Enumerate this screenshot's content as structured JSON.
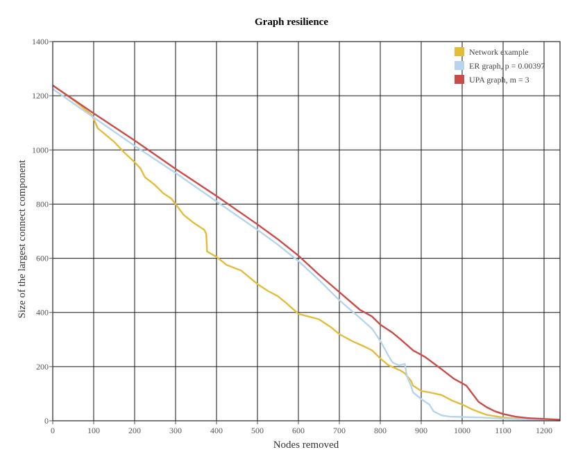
{
  "chart_data": {
    "type": "line",
    "title": "Graph resilience",
    "xlabel": "Nodes removed",
    "ylabel": "Size of the largest connect component",
    "xlim": [
      0,
      1239
    ],
    "ylim": [
      0,
      1400
    ],
    "x_ticks": [
      "0",
      "100",
      "200",
      "300",
      "400",
      "500",
      "600",
      "700",
      "800",
      "900",
      "1000",
      "1100",
      "1200"
    ],
    "y_ticks": [
      "0",
      "200",
      "400",
      "600",
      "800",
      "1000",
      "1200",
      "1400"
    ],
    "grid": true,
    "legend_position": "top-right",
    "series": [
      {
        "name": "Network example",
        "color": "#e3bc3a",
        "points": [
          [
            0,
            1239
          ],
          [
            50,
            1185
          ],
          [
            95,
            1130
          ],
          [
            100,
            1115
          ],
          [
            110,
            1080
          ],
          [
            150,
            1030
          ],
          [
            175,
            990
          ],
          [
            200,
            955
          ],
          [
            215,
            930
          ],
          [
            225,
            900
          ],
          [
            250,
            870
          ],
          [
            270,
            840
          ],
          [
            290,
            820
          ],
          [
            300,
            800
          ],
          [
            320,
            760
          ],
          [
            345,
            730
          ],
          [
            370,
            705
          ],
          [
            375,
            690
          ],
          [
            377,
            625
          ],
          [
            400,
            605
          ],
          [
            425,
            575
          ],
          [
            460,
            555
          ],
          [
            480,
            530
          ],
          [
            500,
            505
          ],
          [
            525,
            480
          ],
          [
            550,
            460
          ],
          [
            570,
            435
          ],
          [
            600,
            395
          ],
          [
            625,
            385
          ],
          [
            650,
            375
          ],
          [
            680,
            345
          ],
          [
            700,
            320
          ],
          [
            730,
            295
          ],
          [
            760,
            275
          ],
          [
            780,
            260
          ],
          [
            800,
            230
          ],
          [
            820,
            205
          ],
          [
            850,
            185
          ],
          [
            860,
            175
          ],
          [
            875,
            148
          ],
          [
            880,
            130
          ],
          [
            900,
            110
          ],
          [
            920,
            105
          ],
          [
            950,
            95
          ],
          [
            975,
            75
          ],
          [
            1000,
            60
          ],
          [
            1025,
            42
          ],
          [
            1045,
            30
          ],
          [
            1060,
            22
          ],
          [
            1100,
            12
          ],
          [
            1150,
            6
          ],
          [
            1200,
            3
          ],
          [
            1239,
            1
          ]
        ]
      },
      {
        "name": "ER graph, p = 0.00397",
        "color": "#b6d4ec",
        "points": [
          [
            0,
            1225
          ],
          [
            100,
            1120
          ],
          [
            200,
            1015
          ],
          [
            300,
            915
          ],
          [
            400,
            810
          ],
          [
            500,
            705
          ],
          [
            550,
            650
          ],
          [
            600,
            590
          ],
          [
            650,
            520
          ],
          [
            700,
            445
          ],
          [
            750,
            380
          ],
          [
            780,
            340
          ],
          [
            800,
            295
          ],
          [
            820,
            240
          ],
          [
            830,
            215
          ],
          [
            845,
            205
          ],
          [
            860,
            210
          ],
          [
            865,
            165
          ],
          [
            875,
            130
          ],
          [
            880,
            105
          ],
          [
            900,
            80
          ],
          [
            920,
            60
          ],
          [
            930,
            35
          ],
          [
            950,
            20
          ],
          [
            970,
            15
          ],
          [
            1000,
            14
          ],
          [
            1050,
            12
          ],
          [
            1100,
            8
          ],
          [
            1150,
            5
          ],
          [
            1200,
            3
          ],
          [
            1239,
            1
          ]
        ]
      },
      {
        "name": "UPA graph, m = 3",
        "color": "#cc4a47",
        "points": [
          [
            0,
            1238
          ],
          [
            100,
            1135
          ],
          [
            200,
            1035
          ],
          [
            300,
            930
          ],
          [
            400,
            830
          ],
          [
            500,
            725
          ],
          [
            550,
            670
          ],
          [
            600,
            610
          ],
          [
            650,
            540
          ],
          [
            700,
            475
          ],
          [
            750,
            410
          ],
          [
            780,
            385
          ],
          [
            800,
            355
          ],
          [
            830,
            325
          ],
          [
            850,
            300
          ],
          [
            880,
            260
          ],
          [
            910,
            235
          ],
          [
            950,
            190
          ],
          [
            980,
            155
          ],
          [
            1010,
            130
          ],
          [
            1020,
            110
          ],
          [
            1030,
            90
          ],
          [
            1040,
            70
          ],
          [
            1060,
            50
          ],
          [
            1080,
            35
          ],
          [
            1100,
            25
          ],
          [
            1130,
            15
          ],
          [
            1160,
            10
          ],
          [
            1200,
            7
          ],
          [
            1239,
            4
          ]
        ]
      }
    ]
  }
}
